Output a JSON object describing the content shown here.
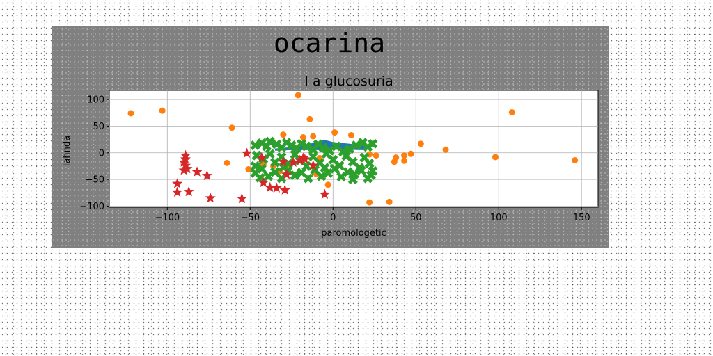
{
  "chart_data": {
    "type": "scatter",
    "title": "ocarina",
    "subtitle": "I a glucosuria",
    "xlabel": "paromologetic",
    "ylabel": "lahnda",
    "xlim": [
      -135,
      160
    ],
    "ylim": [
      -102,
      117
    ],
    "xticks": [
      -100,
      -50,
      0,
      50,
      100,
      150
    ],
    "yticks": [
      -100,
      -50,
      0,
      50,
      100
    ],
    "grid": true,
    "colors": {
      "figure_bg": "#808080",
      "plot_bg": "#ffffff",
      "blue": "#1f77b4",
      "orange": "#ff7f0e",
      "green": "#2ca02c",
      "red": "#d62728"
    },
    "series": [
      {
        "marker": "polygon",
        "color": "#1f77b4",
        "points": [
          [
            -35,
            8
          ],
          [
            -20,
            12
          ],
          [
            -10,
            20
          ],
          [
            -5,
            24
          ],
          [
            0,
            20
          ],
          [
            10,
            17
          ],
          [
            20,
            13
          ],
          [
            18,
            5
          ],
          [
            5,
            6
          ],
          [
            -10,
            5
          ],
          [
            -25,
            5
          ],
          [
            -35,
            4
          ]
        ]
      },
      {
        "marker": "circle",
        "color": "#ff7f0e",
        "points": [
          [
            -122,
            74
          ],
          [
            -103,
            79
          ],
          [
            -21,
            108
          ],
          [
            -14,
            63
          ],
          [
            -61,
            47
          ],
          [
            -30,
            34
          ],
          [
            -12,
            31
          ],
          [
            -18,
            29
          ],
          [
            1,
            38
          ],
          [
            11,
            33
          ],
          [
            22,
            -3
          ],
          [
            26,
            -5
          ],
          [
            37,
            -17
          ],
          [
            38,
            -9
          ],
          [
            43,
            -5
          ],
          [
            43,
            -15
          ],
          [
            47,
            -2
          ],
          [
            53,
            17
          ],
          [
            68,
            6
          ],
          [
            98,
            -8
          ],
          [
            108,
            76
          ],
          [
            146,
            -14
          ],
          [
            -64,
            -19
          ],
          [
            -51,
            -31
          ],
          [
            -8,
            -10
          ],
          [
            -32,
            -34
          ],
          [
            -3,
            -60
          ],
          [
            22,
            -93
          ],
          [
            34,
            -92
          ],
          [
            -18,
            -12
          ],
          [
            -42,
            -22
          ],
          [
            -27,
            -28
          ],
          [
            -36,
            -25
          ],
          [
            -10,
            -40
          ]
        ]
      },
      {
        "marker": "x",
        "color": "#2ca02c",
        "points": [
          [
            -47,
            14
          ],
          [
            -43,
            18
          ],
          [
            -40,
            12
          ],
          [
            -38,
            21
          ],
          [
            -34,
            16
          ],
          [
            -31,
            10
          ],
          [
            -28,
            19
          ],
          [
            -25,
            14
          ],
          [
            -22,
            9
          ],
          [
            -19,
            17
          ],
          [
            -16,
            12
          ],
          [
            -12,
            6
          ],
          [
            -9,
            16
          ],
          [
            -6,
            10
          ],
          [
            -2,
            4
          ],
          [
            2,
            12
          ],
          [
            6,
            2
          ],
          [
            10,
            7
          ],
          [
            14,
            14
          ],
          [
            18,
            19
          ],
          [
            21,
            11
          ],
          [
            24,
            17
          ],
          [
            -46,
            -5
          ],
          [
            -42,
            -12
          ],
          [
            -38,
            -2
          ],
          [
            -35,
            -18
          ],
          [
            -31,
            -8
          ],
          [
            -27,
            -20
          ],
          [
            -23,
            -3
          ],
          [
            -20,
            -15
          ],
          [
            -16,
            -25
          ],
          [
            -12,
            -7
          ],
          [
            -8,
            -19
          ],
          [
            -4,
            -2
          ],
          [
            0,
            -13
          ],
          [
            4,
            -24
          ],
          [
            8,
            -6
          ],
          [
            12,
            -17
          ],
          [
            16,
            -28
          ],
          [
            19,
            -9
          ],
          [
            22,
            -20
          ],
          [
            24,
            -34
          ],
          [
            -47,
            -38
          ],
          [
            -43,
            -30
          ],
          [
            -39,
            -44
          ],
          [
            -35,
            -36
          ],
          [
            -31,
            -48
          ],
          [
            -27,
            -33
          ],
          [
            -23,
            -42
          ],
          [
            -19,
            -37
          ],
          [
            -15,
            -48
          ],
          [
            -11,
            -32
          ],
          [
            -7,
            -44
          ],
          [
            -3,
            -38
          ],
          [
            1,
            -30
          ],
          [
            5,
            -45
          ],
          [
            9,
            -36
          ],
          [
            13,
            -40
          ],
          [
            17,
            -33
          ],
          [
            21,
            -48
          ],
          [
            23,
            -42
          ],
          [
            -47,
            -25
          ],
          [
            -44,
            -47
          ],
          [
            -30,
            -27
          ],
          [
            -5,
            -28
          ],
          [
            12,
            -50
          ]
        ]
      },
      {
        "marker": "star",
        "color": "#d62728",
        "points": [
          [
            -89,
            -5
          ],
          [
            -89,
            -12
          ],
          [
            -90,
            -18
          ],
          [
            -89,
            -24
          ],
          [
            -88,
            -30
          ],
          [
            -90,
            -33
          ],
          [
            -82,
            -36
          ],
          [
            -76,
            -43
          ],
          [
            -94,
            -58
          ],
          [
            -94,
            -74
          ],
          [
            -87,
            -73
          ],
          [
            -74,
            -85
          ],
          [
            -55,
            -86
          ],
          [
            -52,
            -1
          ],
          [
            -43,
            -9
          ],
          [
            -42,
            -56
          ],
          [
            -38,
            -65
          ],
          [
            -34,
            -66
          ],
          [
            -29,
            -70
          ],
          [
            -30,
            -17
          ],
          [
            -28,
            -41
          ],
          [
            -24,
            -18
          ],
          [
            -18,
            -10
          ],
          [
            -17,
            -12
          ],
          [
            -12,
            -24
          ],
          [
            -5,
            -78
          ],
          [
            -20,
            -14
          ]
        ]
      }
    ]
  }
}
